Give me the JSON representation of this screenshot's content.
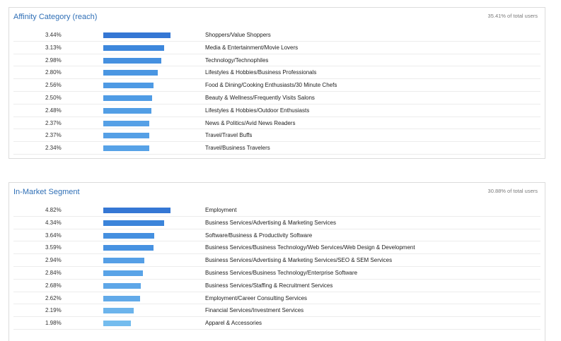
{
  "affinity": {
    "title": "Affinity Category (reach)",
    "total": "35.41% of total users",
    "rows": [
      {
        "pct": "3.44%",
        "value": 3.44,
        "label": "Shoppers/Value Shoppers",
        "color": "#3577d4"
      },
      {
        "pct": "3.13%",
        "value": 3.13,
        "label": "Media & Entertainment/Movie Lovers",
        "color": "#3d87dc"
      },
      {
        "pct": "2.98%",
        "value": 2.98,
        "label": "Technology/Technophiles",
        "color": "#4590e0"
      },
      {
        "pct": "2.80%",
        "value": 2.8,
        "label": "Lifestyles & Hobbies/Business Professionals",
        "color": "#4a96e2"
      },
      {
        "pct": "2.56%",
        "value": 2.56,
        "label": "Food & Dining/Cooking Enthusiasts/30 Minute Chefs",
        "color": "#4e9ae4"
      },
      {
        "pct": "2.50%",
        "value": 2.5,
        "label": "Beauty & Wellness/Frequently Visits Salons",
        "color": "#509ce5"
      },
      {
        "pct": "2.48%",
        "value": 2.48,
        "label": "Lifestyles & Hobbies/Outdoor Enthusiasts",
        "color": "#529ee5"
      },
      {
        "pct": "2.37%",
        "value": 2.37,
        "label": "News & Politics/Avid News Readers",
        "color": "#55a0e6"
      },
      {
        "pct": "2.37%",
        "value": 2.37,
        "label": "Travel/Travel Buffs",
        "color": "#55a0e6"
      },
      {
        "pct": "2.34%",
        "value": 2.34,
        "label": "Travel/Business Travelers",
        "color": "#57a2e7"
      }
    ]
  },
  "inmarket": {
    "title": "In-Market Segment",
    "total": "30.88% of total users",
    "rows": [
      {
        "pct": "4.82%",
        "value": 4.82,
        "label": "Employment",
        "color": "#3577d4"
      },
      {
        "pct": "4.34%",
        "value": 4.34,
        "label": "Business Services/Advertising & Marketing Services",
        "color": "#3b84da"
      },
      {
        "pct": "3.64%",
        "value": 3.64,
        "label": "Software/Business & Productivity Software",
        "color": "#4590e0"
      },
      {
        "pct": "3.59%",
        "value": 3.59,
        "label": "Business Services/Business Technology/Web Services/Web Design & Development",
        "color": "#4792e1"
      },
      {
        "pct": "2.94%",
        "value": 2.94,
        "label": "Business Services/Advertising & Marketing Services/SEO & SEM Services",
        "color": "#559fe6"
      },
      {
        "pct": "2.84%",
        "value": 2.84,
        "label": "Business Services/Business Technology/Enterprise Software",
        "color": "#59a3e7"
      },
      {
        "pct": "2.68%",
        "value": 2.68,
        "label": "Business Services/Staffing & Recruitment Services",
        "color": "#5ea7e8"
      },
      {
        "pct": "2.62%",
        "value": 2.62,
        "label": "Employment/Career Consulting Services",
        "color": "#62aae9"
      },
      {
        "pct": "2.19%",
        "value": 2.19,
        "label": "Financial Services/Investment Services",
        "color": "#6cb4ec"
      },
      {
        "pct": "1.98%",
        "value": 1.98,
        "label": "Apparel & Accessories",
        "color": "#74bcee"
      }
    ]
  }
}
